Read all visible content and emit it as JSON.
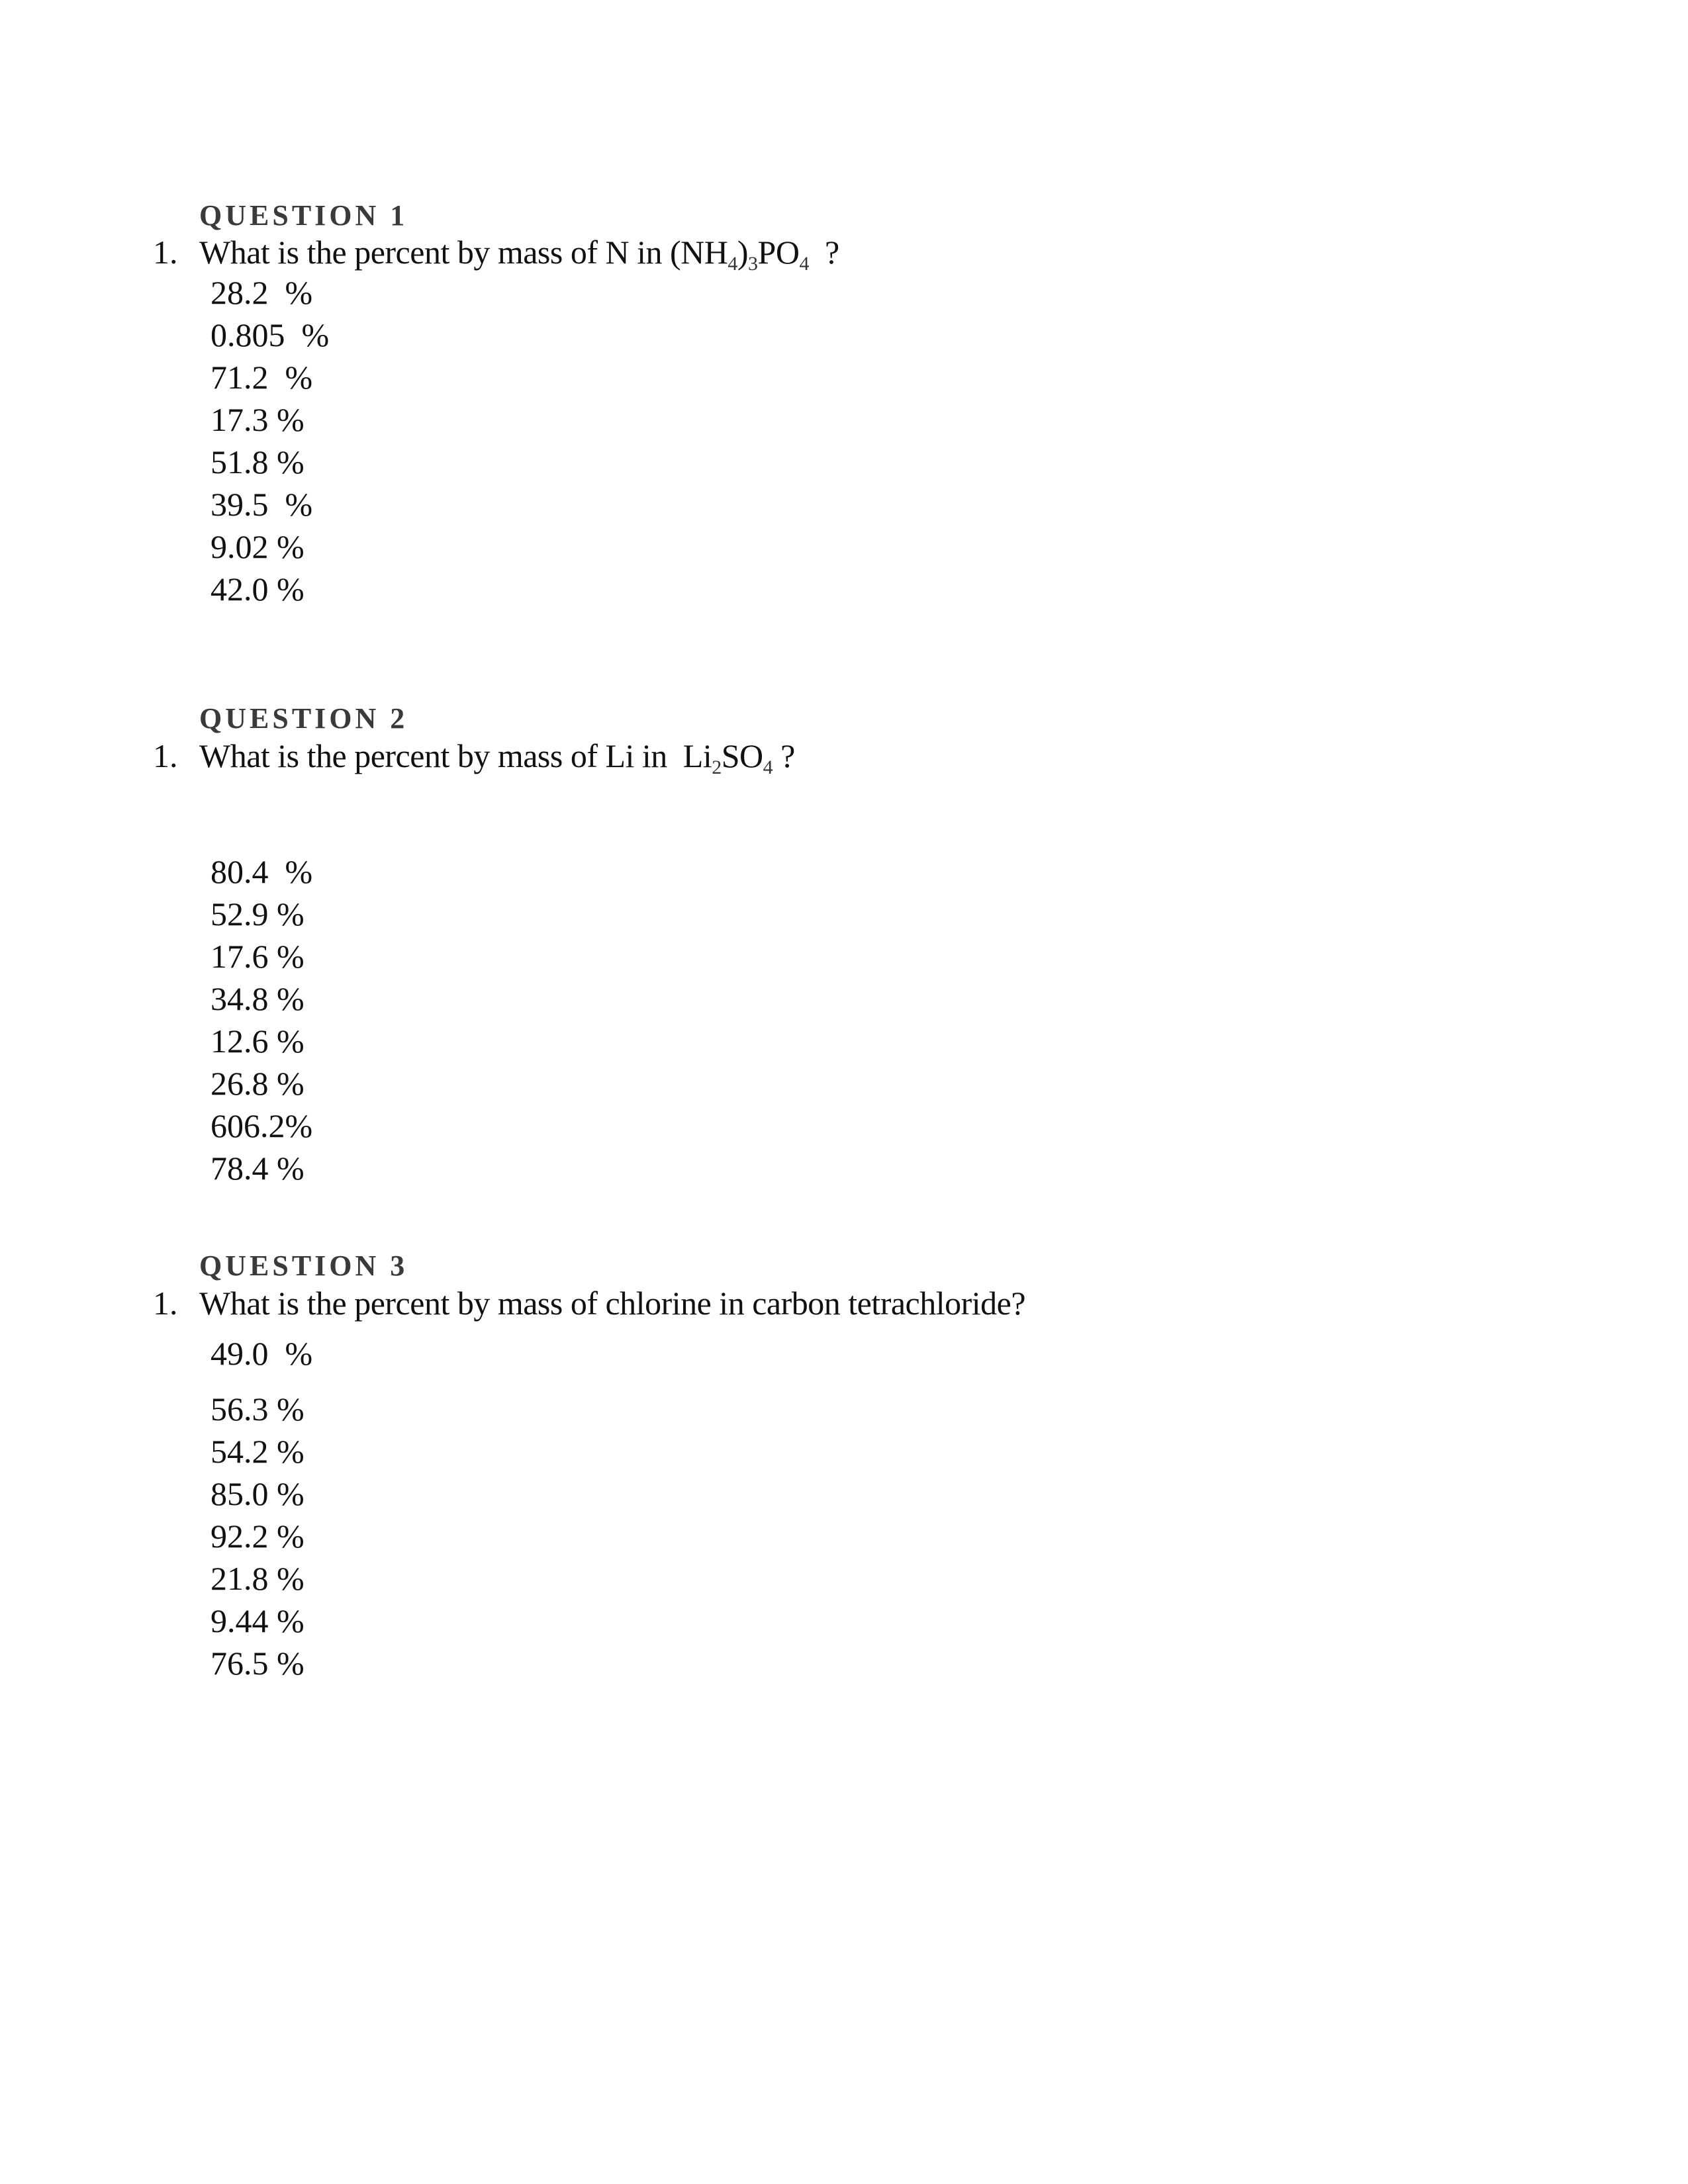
{
  "questions": [
    {
      "heading": "QUESTION 1",
      "number": "1.",
      "prompt": [
        {
          "t": "What is the percent by mass of N in (NH"
        },
        {
          "sub": "4"
        },
        {
          "t": ")"
        },
        {
          "sub": "3"
        },
        {
          "t": "PO"
        },
        {
          "sub": "4"
        },
        {
          "t": "  ?"
        }
      ],
      "options": [
        "28.2  %",
        "0.805  %",
        "71.2  %",
        "17.3 %",
        "51.8 %",
        "39.5  %",
        "9.02 %",
        "42.0 %"
      ]
    },
    {
      "heading": "QUESTION 2",
      "number": "1.",
      "prompt": [
        {
          "t": "What is the percent by mass of Li in  Li"
        },
        {
          "sub": "2"
        },
        {
          "t": "SO"
        },
        {
          "sub": "4"
        },
        {
          "t": " ?"
        }
      ],
      "options": [
        "80.4  %",
        "52.9 %",
        "17.6 %",
        "34.8 %",
        "12.6 %",
        "26.8 %",
        "606.2%",
        "78.4 %"
      ]
    },
    {
      "heading": "QUESTION 3",
      "number": "1.",
      "prompt": [
        {
          "t": "What is the percent by mass of chlorine in carbon tetrachloride?"
        }
      ],
      "options": [
        "49.0  %",
        "56.3 %",
        "54.2 %",
        "85.0 %",
        "92.2 %",
        "21.8 %",
        "9.44 %",
        "76.5 %"
      ]
    }
  ]
}
